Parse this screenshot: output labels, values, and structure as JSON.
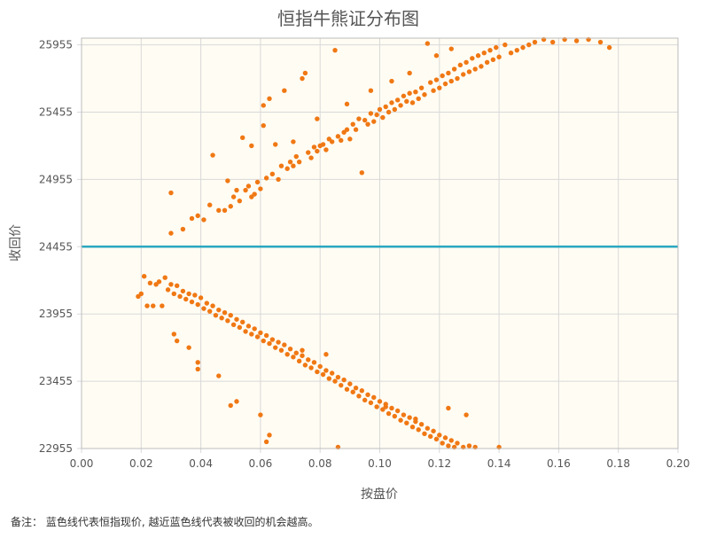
{
  "chart_data": {
    "type": "scatter",
    "title": "恒指牛熊证分布图",
    "xlabel": "按盘价",
    "ylabel": "收回价",
    "xlim": [
      0.0,
      0.2
    ],
    "ylim": [
      22955,
      26005
    ],
    "x_ticks": [
      "0.00",
      "0.02",
      "0.04",
      "0.06",
      "0.08",
      "0.10",
      "0.12",
      "0.14",
      "0.16",
      "0.18",
      "0.20"
    ],
    "y_ticks": [
      "22955",
      "23455",
      "23955",
      "24455",
      "24955",
      "25455",
      "25955"
    ],
    "grid": true,
    "reference_line": {
      "y": 24455,
      "color": "#2aa8c0"
    },
    "point_color": "#f07814",
    "plot_background": "#fffcf3",
    "series": [
      {
        "values": [
          [
            0.03,
            24855
          ],
          [
            0.037,
            24665
          ],
          [
            0.039,
            24685
          ],
          [
            0.041,
            24655
          ],
          [
            0.043,
            24765
          ],
          [
            0.044,
            25135
          ],
          [
            0.046,
            24725
          ],
          [
            0.048,
            24725
          ],
          [
            0.049,
            24945
          ],
          [
            0.05,
            24755
          ],
          [
            0.051,
            24825
          ],
          [
            0.052,
            24875
          ],
          [
            0.053,
            24795
          ],
          [
            0.054,
            25265
          ],
          [
            0.055,
            24875
          ],
          [
            0.056,
            24905
          ],
          [
            0.057,
            24825
          ],
          [
            0.058,
            24845
          ],
          [
            0.059,
            24935
          ],
          [
            0.06,
            24885
          ],
          [
            0.061,
            25505
          ],
          [
            0.062,
            24965
          ],
          [
            0.063,
            25555
          ],
          [
            0.064,
            24995
          ],
          [
            0.065,
            25215
          ],
          [
            0.066,
            24955
          ],
          [
            0.067,
            25055
          ],
          [
            0.068,
            25615
          ],
          [
            0.069,
            25035
          ],
          [
            0.07,
            25085
          ],
          [
            0.071,
            25055
          ],
          [
            0.072,
            25125
          ],
          [
            0.073,
            25085
          ],
          [
            0.074,
            25705
          ],
          [
            0.075,
            25745
          ],
          [
            0.076,
            25155
          ],
          [
            0.077,
            25115
          ],
          [
            0.078,
            25195
          ],
          [
            0.079,
            25165
          ],
          [
            0.08,
            25205
          ],
          [
            0.081,
            25215
          ],
          [
            0.082,
            25175
          ],
          [
            0.083,
            25255
          ],
          [
            0.084,
            25235
          ],
          [
            0.085,
            25915
          ],
          [
            0.086,
            25275
          ],
          [
            0.087,
            25245
          ],
          [
            0.088,
            25305
          ],
          [
            0.089,
            25325
          ],
          [
            0.09,
            25255
          ],
          [
            0.091,
            25365
          ],
          [
            0.092,
            25325
          ],
          [
            0.093,
            25405
          ],
          [
            0.094,
            25005
          ],
          [
            0.095,
            25395
          ],
          [
            0.096,
            25365
          ],
          [
            0.097,
            25445
          ],
          [
            0.098,
            25385
          ],
          [
            0.099,
            25435
          ],
          [
            0.1,
            25475
          ],
          [
            0.101,
            25415
          ],
          [
            0.102,
            25495
          ],
          [
            0.103,
            25455
          ],
          [
            0.104,
            25525
          ],
          [
            0.105,
            25475
          ],
          [
            0.106,
            25545
          ],
          [
            0.107,
            25505
          ],
          [
            0.108,
            25575
          ],
          [
            0.109,
            25535
          ],
          [
            0.11,
            25595
          ],
          [
            0.111,
            25525
          ],
          [
            0.112,
            25605
          ],
          [
            0.113,
            25555
          ],
          [
            0.114,
            25635
          ],
          [
            0.115,
            25585
          ],
          [
            0.116,
            25965
          ],
          [
            0.117,
            25675
          ],
          [
            0.118,
            25615
          ],
          [
            0.119,
            25695
          ],
          [
            0.12,
            25635
          ],
          [
            0.121,
            25725
          ],
          [
            0.122,
            25665
          ],
          [
            0.123,
            25745
          ],
          [
            0.124,
            25685
          ],
          [
            0.125,
            25775
          ],
          [
            0.126,
            25705
          ],
          [
            0.127,
            25805
          ],
          [
            0.128,
            25735
          ],
          [
            0.129,
            25825
          ],
          [
            0.13,
            25755
          ],
          [
            0.131,
            25855
          ],
          [
            0.132,
            25775
          ],
          [
            0.133,
            25875
          ],
          [
            0.134,
            25795
          ],
          [
            0.135,
            25895
          ],
          [
            0.136,
            25825
          ],
          [
            0.137,
            25915
          ],
          [
            0.138,
            25845
          ],
          [
            0.139,
            25935
          ],
          [
            0.14,
            25865
          ],
          [
            0.142,
            25955
          ],
          [
            0.144,
            25895
          ],
          [
            0.146,
            25915
          ],
          [
            0.148,
            25935
          ],
          [
            0.15,
            25955
          ],
          [
            0.152,
            25975
          ],
          [
            0.155,
            25995
          ],
          [
            0.158,
            25975
          ],
          [
            0.162,
            25995
          ],
          [
            0.166,
            25985
          ],
          [
            0.17,
            25995
          ],
          [
            0.174,
            25975
          ],
          [
            0.177,
            25935
          ],
          [
            0.03,
            24555
          ],
          [
            0.034,
            24585
          ],
          [
            0.057,
            25205
          ],
          [
            0.061,
            25355
          ],
          [
            0.071,
            25235
          ],
          [
            0.079,
            25405
          ],
          [
            0.089,
            25515
          ],
          [
            0.097,
            25615
          ],
          [
            0.104,
            25685
          ],
          [
            0.11,
            25745
          ],
          [
            0.119,
            25875
          ],
          [
            0.124,
            25925
          ]
        ]
      },
      {
        "values": [
          [
            0.019,
            24085
          ],
          [
            0.02,
            24105
          ],
          [
            0.021,
            24235
          ],
          [
            0.022,
            24015
          ],
          [
            0.023,
            24185
          ],
          [
            0.024,
            24015
          ],
          [
            0.025,
            24175
          ],
          [
            0.026,
            24195
          ],
          [
            0.027,
            24015
          ],
          [
            0.028,
            24225
          ],
          [
            0.029,
            24135
          ],
          [
            0.03,
            24175
          ],
          [
            0.031,
            24105
          ],
          [
            0.032,
            24165
          ],
          [
            0.033,
            24085
          ],
          [
            0.034,
            24125
          ],
          [
            0.035,
            24065
          ],
          [
            0.036,
            24105
          ],
          [
            0.037,
            24045
          ],
          [
            0.038,
            24095
          ],
          [
            0.039,
            24025
          ],
          [
            0.04,
            24075
          ],
          [
            0.041,
            23995
          ],
          [
            0.042,
            24035
          ],
          [
            0.043,
            23975
          ],
          [
            0.044,
            24015
          ],
          [
            0.045,
            23945
          ],
          [
            0.046,
            23985
          ],
          [
            0.047,
            23925
          ],
          [
            0.048,
            23965
          ],
          [
            0.049,
            23905
          ],
          [
            0.05,
            23945
          ],
          [
            0.051,
            23875
          ],
          [
            0.052,
            23915
          ],
          [
            0.053,
            23855
          ],
          [
            0.054,
            23895
          ],
          [
            0.055,
            23825
          ],
          [
            0.056,
            23865
          ],
          [
            0.057,
            23805
          ],
          [
            0.058,
            23845
          ],
          [
            0.059,
            23785
          ],
          [
            0.06,
            23815
          ],
          [
            0.061,
            23755
          ],
          [
            0.062,
            23795
          ],
          [
            0.063,
            23735
          ],
          [
            0.064,
            23765
          ],
          [
            0.065,
            23705
          ],
          [
            0.066,
            23745
          ],
          [
            0.067,
            23685
          ],
          [
            0.068,
            23725
          ],
          [
            0.069,
            23655
          ],
          [
            0.07,
            23695
          ],
          [
            0.071,
            23635
          ],
          [
            0.072,
            23665
          ],
          [
            0.073,
            23605
          ],
          [
            0.074,
            23645
          ],
          [
            0.075,
            23575
          ],
          [
            0.076,
            23615
          ],
          [
            0.077,
            23555
          ],
          [
            0.078,
            23595
          ],
          [
            0.079,
            23525
          ],
          [
            0.08,
            23565
          ],
          [
            0.081,
            23505
          ],
          [
            0.082,
            23535
          ],
          [
            0.083,
            23475
          ],
          [
            0.084,
            23515
          ],
          [
            0.085,
            23455
          ],
          [
            0.086,
            23485
          ],
          [
            0.087,
            23425
          ],
          [
            0.088,
            23465
          ],
          [
            0.089,
            23395
          ],
          [
            0.09,
            23435
          ],
          [
            0.091,
            23375
          ],
          [
            0.092,
            23405
          ],
          [
            0.093,
            23345
          ],
          [
            0.094,
            23385
          ],
          [
            0.095,
            23315
          ],
          [
            0.096,
            23355
          ],
          [
            0.097,
            23295
          ],
          [
            0.098,
            23335
          ],
          [
            0.099,
            23265
          ],
          [
            0.1,
            23305
          ],
          [
            0.101,
            23245
          ],
          [
            0.102,
            23285
          ],
          [
            0.103,
            23215
          ],
          [
            0.104,
            23255
          ],
          [
            0.105,
            23195
          ],
          [
            0.106,
            23235
          ],
          [
            0.107,
            23165
          ],
          [
            0.108,
            23205
          ],
          [
            0.109,
            23145
          ],
          [
            0.11,
            23185
          ],
          [
            0.111,
            23115
          ],
          [
            0.112,
            23155
          ],
          [
            0.113,
            23095
          ],
          [
            0.114,
            23135
          ],
          [
            0.115,
            23065
          ],
          [
            0.116,
            23105
          ],
          [
            0.117,
            23045
          ],
          [
            0.118,
            23085
          ],
          [
            0.119,
            23025
          ],
          [
            0.12,
            23055
          ],
          [
            0.121,
            22995
          ],
          [
            0.122,
            23035
          ],
          [
            0.123,
            22975
          ],
          [
            0.124,
            23015
          ],
          [
            0.125,
            22965
          ],
          [
            0.126,
            22995
          ],
          [
            0.128,
            22965
          ],
          [
            0.13,
            22975
          ],
          [
            0.132,
            22965
          ],
          [
            0.14,
            22965
          ],
          [
            0.031,
            23805
          ],
          [
            0.032,
            23755
          ],
          [
            0.036,
            23705
          ],
          [
            0.039,
            23595
          ],
          [
            0.039,
            23545
          ],
          [
            0.046,
            23495
          ],
          [
            0.05,
            23275
          ],
          [
            0.052,
            23305
          ],
          [
            0.06,
            23205
          ],
          [
            0.062,
            23005
          ],
          [
            0.063,
            23055
          ],
          [
            0.086,
            22965
          ],
          [
            0.074,
            23685
          ],
          [
            0.082,
            23655
          ],
          [
            0.102,
            23265
          ],
          [
            0.123,
            23255
          ],
          [
            0.129,
            23205
          ],
          [
            0.112,
            23175
          ]
        ]
      }
    ]
  },
  "footnote": "备注：  蓝色线代表恒指现价, 越近蓝色线代表被收回的机会越高。"
}
